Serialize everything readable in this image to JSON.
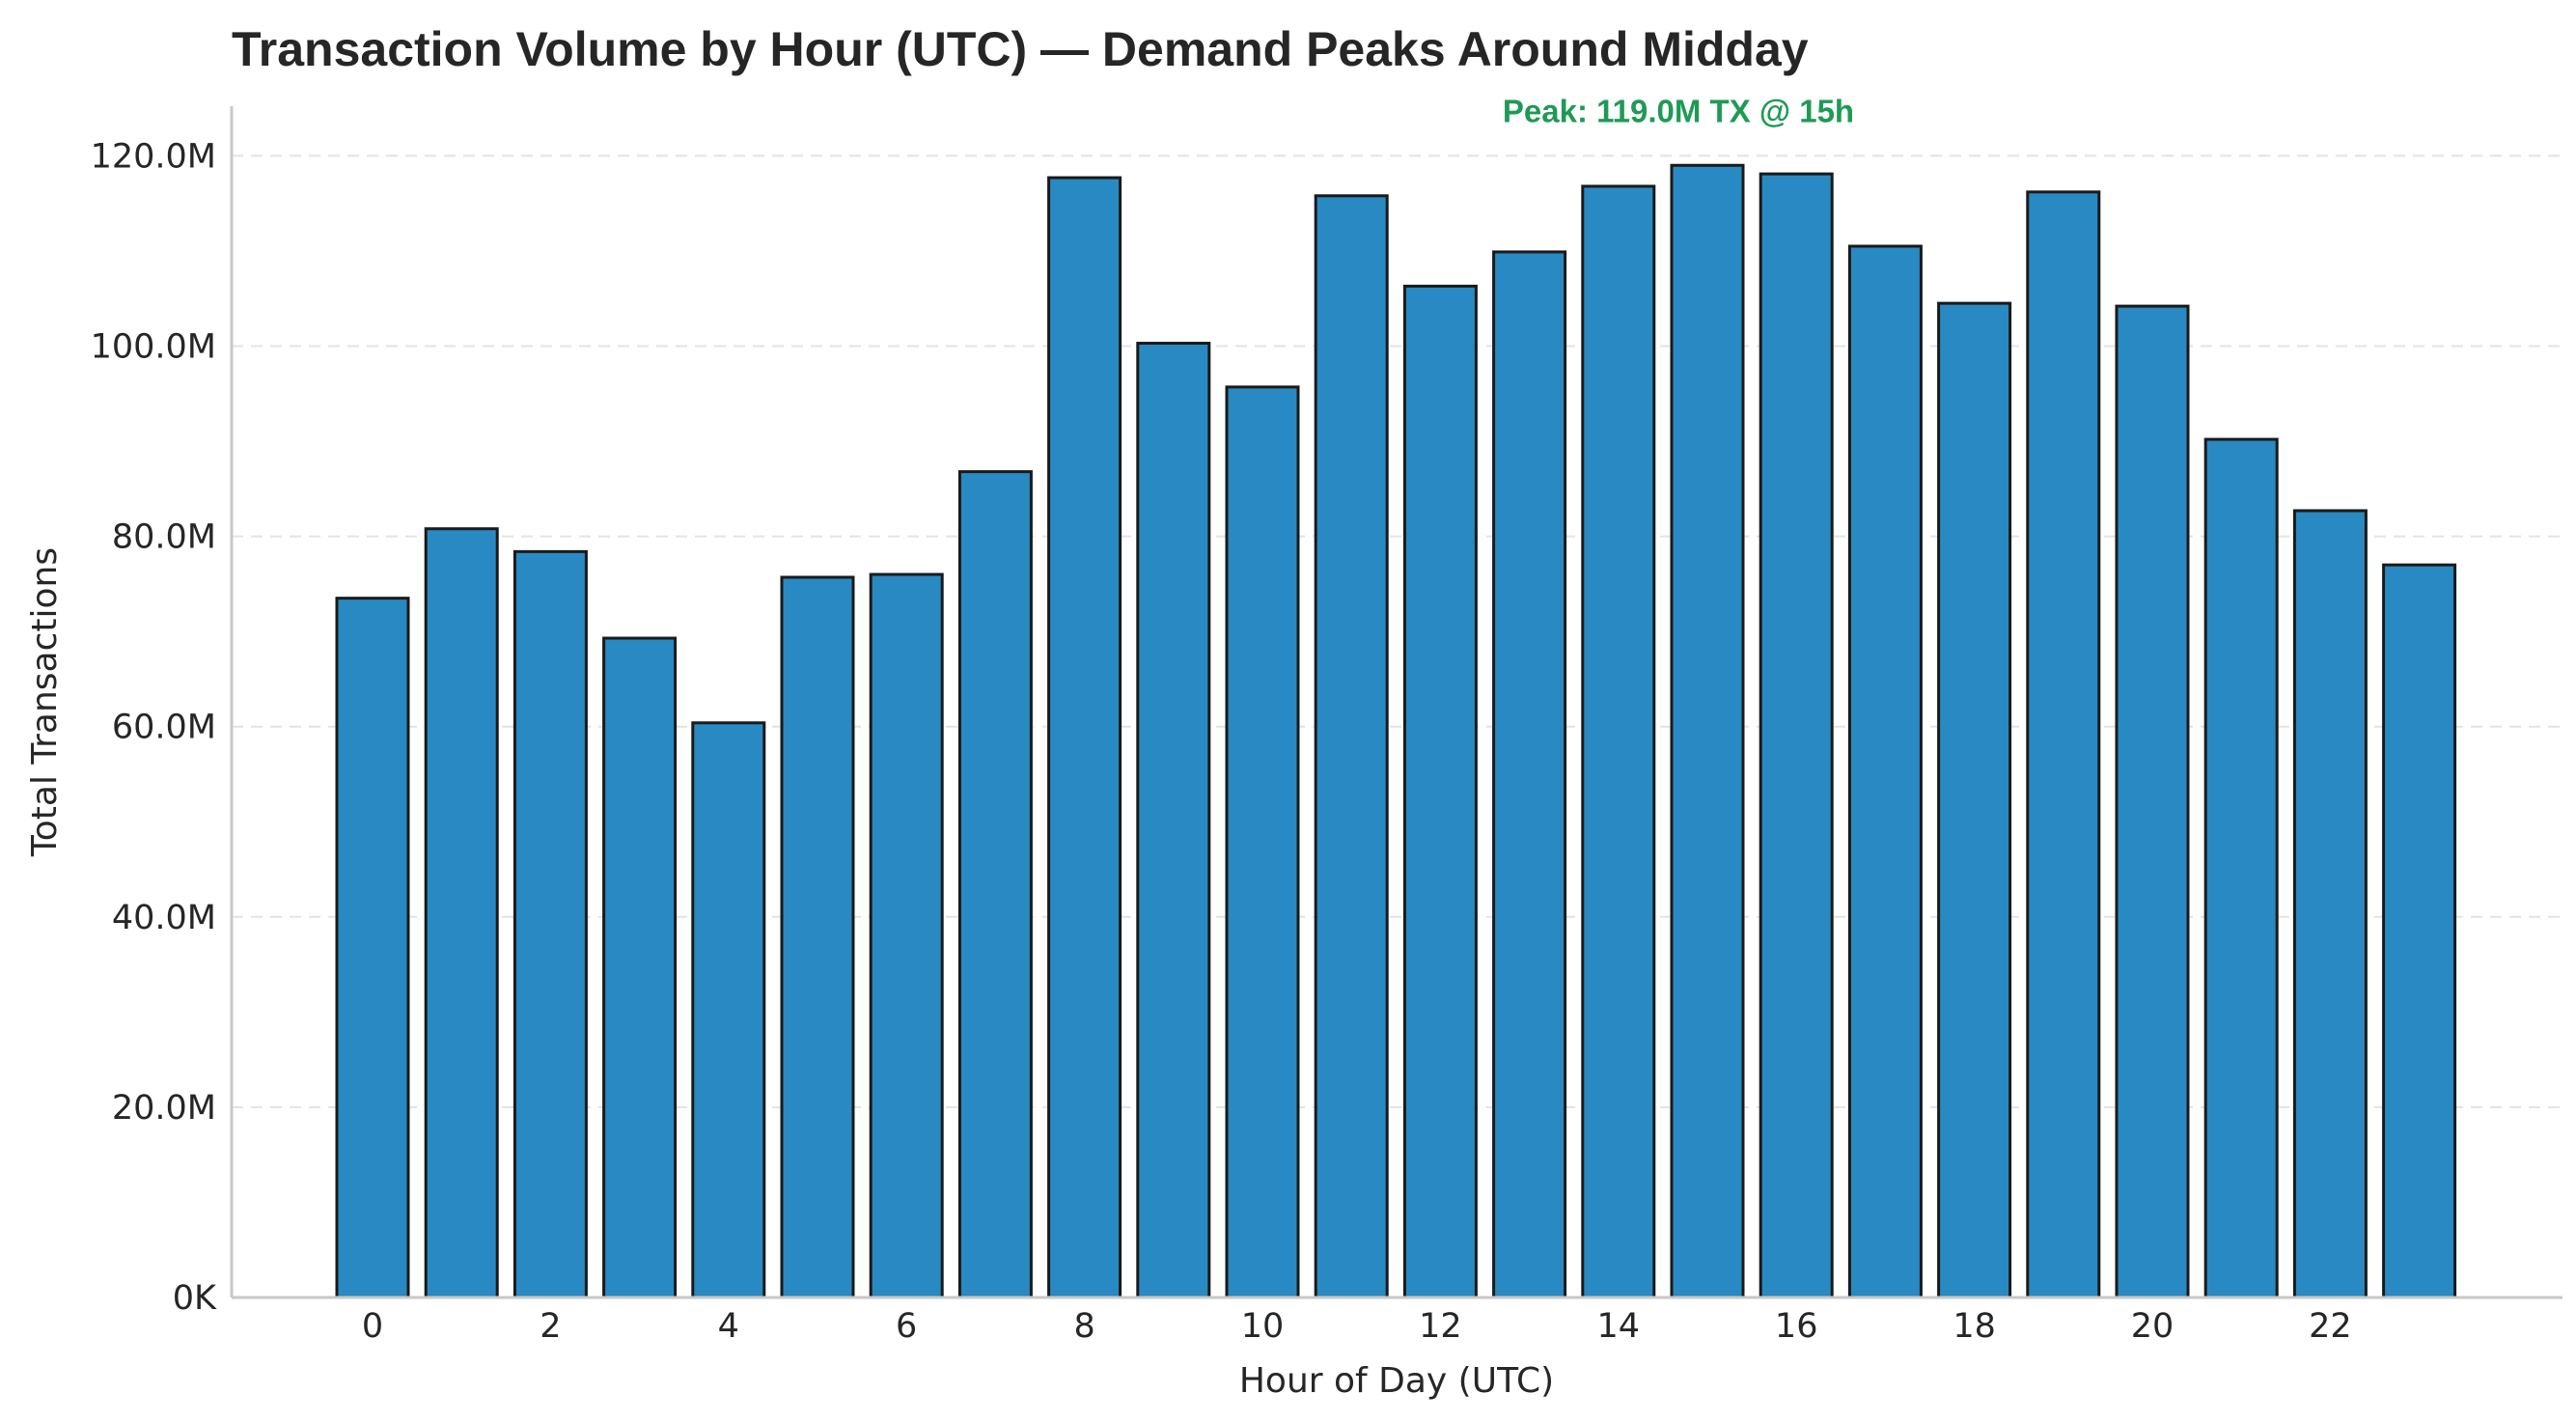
{
  "chart_data": {
    "type": "bar",
    "title": "Transaction Volume by Hour (UTC) — Demand Peaks Around Midday",
    "xlabel": "Hour of Day (UTC)",
    "ylabel": "Total Transactions",
    "categories": [
      0,
      1,
      2,
      3,
      4,
      5,
      6,
      7,
      8,
      9,
      10,
      11,
      12,
      13,
      14,
      15,
      16,
      17,
      18,
      19,
      20,
      21,
      22,
      23
    ],
    "values": [
      73.5,
      80.8,
      78.4,
      69.3,
      60.4,
      75.7,
      76.0,
      86.8,
      117.7,
      100.3,
      95.7,
      115.8,
      106.3,
      109.9,
      116.8,
      119.0,
      118.1,
      110.5,
      104.5,
      116.2,
      104.2,
      90.2,
      82.7,
      77.0
    ],
    "value_unit": "M",
    "x_ticks": [
      0,
      2,
      4,
      6,
      8,
      10,
      12,
      14,
      16,
      18,
      20,
      22
    ],
    "y_ticks": [
      {
        "value": 0,
        "label": "0K"
      },
      {
        "value": 20,
        "label": "20.0M"
      },
      {
        "value": 40,
        "label": "40.0M"
      },
      {
        "value": 60,
        "label": "60.0M"
      },
      {
        "value": 80,
        "label": "80.0M"
      },
      {
        "value": 100,
        "label": "100.0M"
      },
      {
        "value": 120,
        "label": "120.0M"
      }
    ],
    "ylim": [
      0,
      125
    ],
    "grid": "horizontal dashed",
    "bar_color": "#2989c2",
    "annotation": {
      "text": "Peak: 119.0M TX @ 15h",
      "x": 15,
      "color": "#1f9a55"
    }
  }
}
